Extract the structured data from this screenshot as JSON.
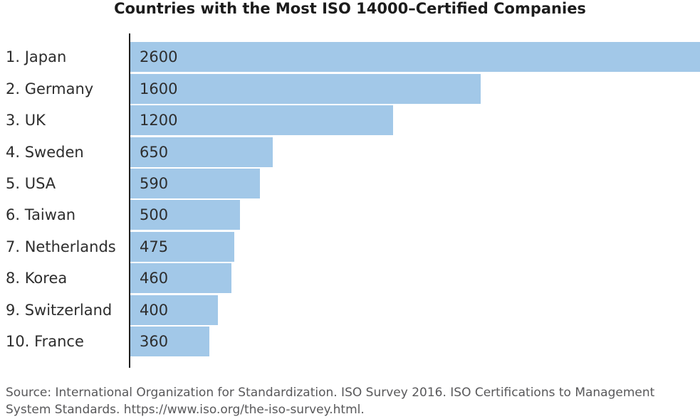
{
  "chart_data": {
    "type": "bar",
    "orientation": "horizontal",
    "title": "Countries with the Most ISO 14000–Certified Companies",
    "categories": [
      "Japan",
      "Germany",
      "UK",
      "Sweden",
      "USA",
      "Taiwan",
      "Netherlands",
      "Korea",
      "Switzerland",
      "France"
    ],
    "display_labels": [
      "1. Japan",
      "2. Germany",
      "3. UK",
      "4. Sweden",
      "5. USA",
      "6. Taiwan",
      "7. Netherlands",
      "8. Korea",
      "9. Switzerland",
      "10. France"
    ],
    "values": [
      2600,
      1600,
      1200,
      650,
      590,
      500,
      475,
      460,
      400,
      360
    ],
    "xlim": [
      0,
      2600
    ],
    "xlabel": "",
    "ylabel": "",
    "grid": false,
    "legend": false,
    "bar_color": "#a2c8e8",
    "axis_color": "#1f1f1f",
    "value_label_position": "inside-left"
  },
  "source": {
    "lines": [
      "Source: International Organization for Standardization. ISO Survey 2016. ISO Certifications to Management",
      "System Standards. https://www.iso.org/the-iso-survey.html."
    ]
  }
}
